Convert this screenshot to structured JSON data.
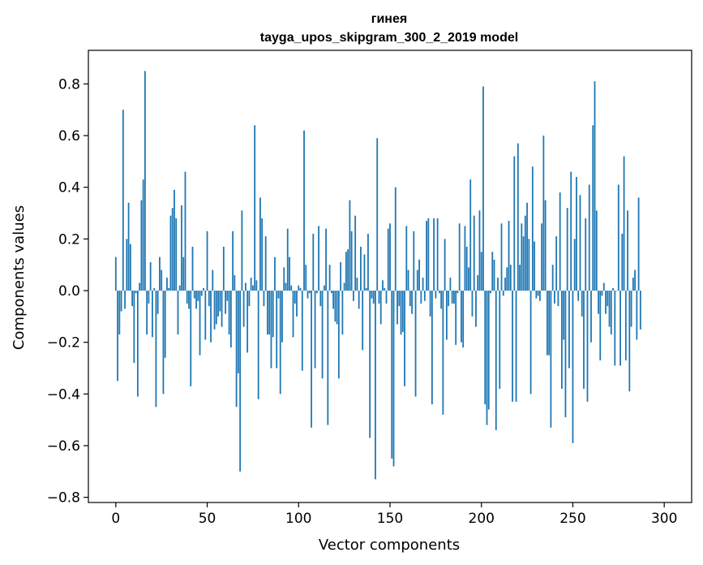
{
  "chart_data": {
    "type": "bar",
    "title_lines": [
      "гинея",
      "tayga_upos_skipgram_300_2_2019 model"
    ],
    "xlabel": "Vector components",
    "ylabel": "Components values",
    "xlim": [
      -15,
      315
    ],
    "ylim": [
      -0.82,
      0.93
    ],
    "xticks": [
      0,
      50,
      100,
      150,
      200,
      250,
      300
    ],
    "xtick_labels": [
      "0",
      "50",
      "100",
      "150",
      "200",
      "250",
      "300"
    ],
    "yticks": [
      -0.8,
      -0.6,
      -0.4,
      -0.2,
      0.0,
      0.2,
      0.4,
      0.6,
      0.8
    ],
    "ytick_labels": [
      "−0.8",
      "−0.6",
      "−0.4",
      "−0.2",
      "0.0",
      "0.2",
      "0.4",
      "0.6",
      "0.8"
    ],
    "grid": false,
    "bar_color": "#1f77b4",
    "bar_width": 0.8,
    "values": [
      0.13,
      -0.35,
      -0.17,
      -0.08,
      0.7,
      -0.07,
      0.2,
      0.34,
      0.18,
      -0.06,
      -0.28,
      -0.01,
      -0.41,
      0.03,
      0.35,
      0.43,
      0.85,
      -0.17,
      -0.05,
      0.11,
      -0.18,
      0.01,
      -0.45,
      -0.09,
      0.13,
      0.08,
      -0.4,
      -0.26,
      0.05,
      0.01,
      0.29,
      0.32,
      0.39,
      0.28,
      -0.17,
      0.02,
      0.33,
      0.13,
      0.46,
      -0.05,
      -0.07,
      -0.37,
      0.17,
      -0.03,
      -0.07,
      -0.04,
      -0.25,
      -0.02,
      0.01,
      -0.19,
      0.23,
      -0.06,
      -0.2,
      0.08,
      -0.15,
      -0.13,
      -0.1,
      -0.08,
      -0.14,
      0.17,
      -0.09,
      -0.04,
      -0.17,
      -0.22,
      0.23,
      0.06,
      -0.45,
      -0.32,
      -0.7,
      0.31,
      -0.14,
      0.03,
      -0.24,
      -0.06,
      0.05,
      0.02,
      0.64,
      0.04,
      -0.42,
      0.36,
      0.28,
      -0.06,
      0.21,
      -0.17,
      -0.17,
      -0.3,
      -0.18,
      0.13,
      -0.3,
      -0.03,
      -0.4,
      -0.2,
      0.09,
      0.03,
      0.24,
      0.13,
      0.02,
      -0.18,
      -0.05,
      -0.1,
      0.02,
      0.01,
      -0.31,
      0.62,
      0.1,
      -0.03,
      -0.01,
      -0.53,
      0.22,
      -0.3,
      -0.01,
      0.25,
      -0.06,
      -0.34,
      0.02,
      0.24,
      -0.52,
      0.1,
      -0.01,
      -0.07,
      -0.12,
      -0.13,
      -0.34,
      0.11,
      -0.17,
      0.03,
      0.15,
      0.16,
      0.35,
      0.23,
      -0.04,
      0.29,
      0.05,
      -0.07,
      0.17,
      -0.23,
      0.14,
      0.01,
      0.22,
      -0.57,
      -0.03,
      -0.05,
      -0.73,
      0.59,
      -0.05,
      -0.13,
      0.04,
      0.01,
      -0.05,
      0.24,
      0.26,
      -0.65,
      -0.68,
      0.4,
      -0.13,
      -0.06,
      -0.17,
      -0.16,
      -0.37,
      0.25,
      0.08,
      -0.06,
      -0.09,
      0.23,
      -0.41,
      0.08,
      0.12,
      -0.05,
      0.05,
      -0.04,
      0.27,
      0.28,
      -0.1,
      -0.44,
      0.28,
      -0.03,
      0.28,
      -0.01,
      -0.07,
      -0.48,
      0.2,
      -0.19,
      -0.06,
      0.05,
      -0.05,
      -0.05,
      -0.21,
      -0.01,
      0.26,
      -0.2,
      -0.22,
      0.25,
      0.17,
      0.09,
      0.43,
      -0.1,
      0.29,
      -0.14,
      0.06,
      0.31,
      0.15,
      0.79,
      -0.44,
      -0.52,
      -0.46,
      -0.01,
      0.15,
      0.12,
      -0.54,
      0.05,
      -0.38,
      0.26,
      -0.02,
      0.05,
      0.09,
      0.27,
      0.1,
      -0.43,
      0.52,
      -0.43,
      0.57,
      0.1,
      0.26,
      0.21,
      0.29,
      0.34,
      0.2,
      -0.4,
      0.48,
      0.19,
      -0.03,
      -0.02,
      -0.04,
      0.26,
      0.6,
      0.35,
      -0.25,
      -0.25,
      -0.53,
      0.1,
      -0.05,
      0.21,
      -0.06,
      0.38,
      -0.38,
      -0.19,
      -0.49,
      0.32,
      -0.3,
      0.46,
      -0.59,
      0.2,
      0.44,
      -0.04,
      0.37,
      -0.1,
      -0.38,
      0.28,
      -0.43,
      0.41,
      -0.2,
      0.64,
      0.81,
      0.31,
      -0.09,
      -0.27,
      -0.02,
      0.03,
      -0.09,
      -0.06,
      -0.14,
      -0.17,
      0.01,
      -0.29,
      0.0,
      0.41,
      -0.29,
      0.22,
      0.52,
      -0.27,
      0.31,
      -0.39,
      -0.14,
      0.05,
      0.08,
      -0.19,
      0.36,
      -0.15
    ]
  }
}
